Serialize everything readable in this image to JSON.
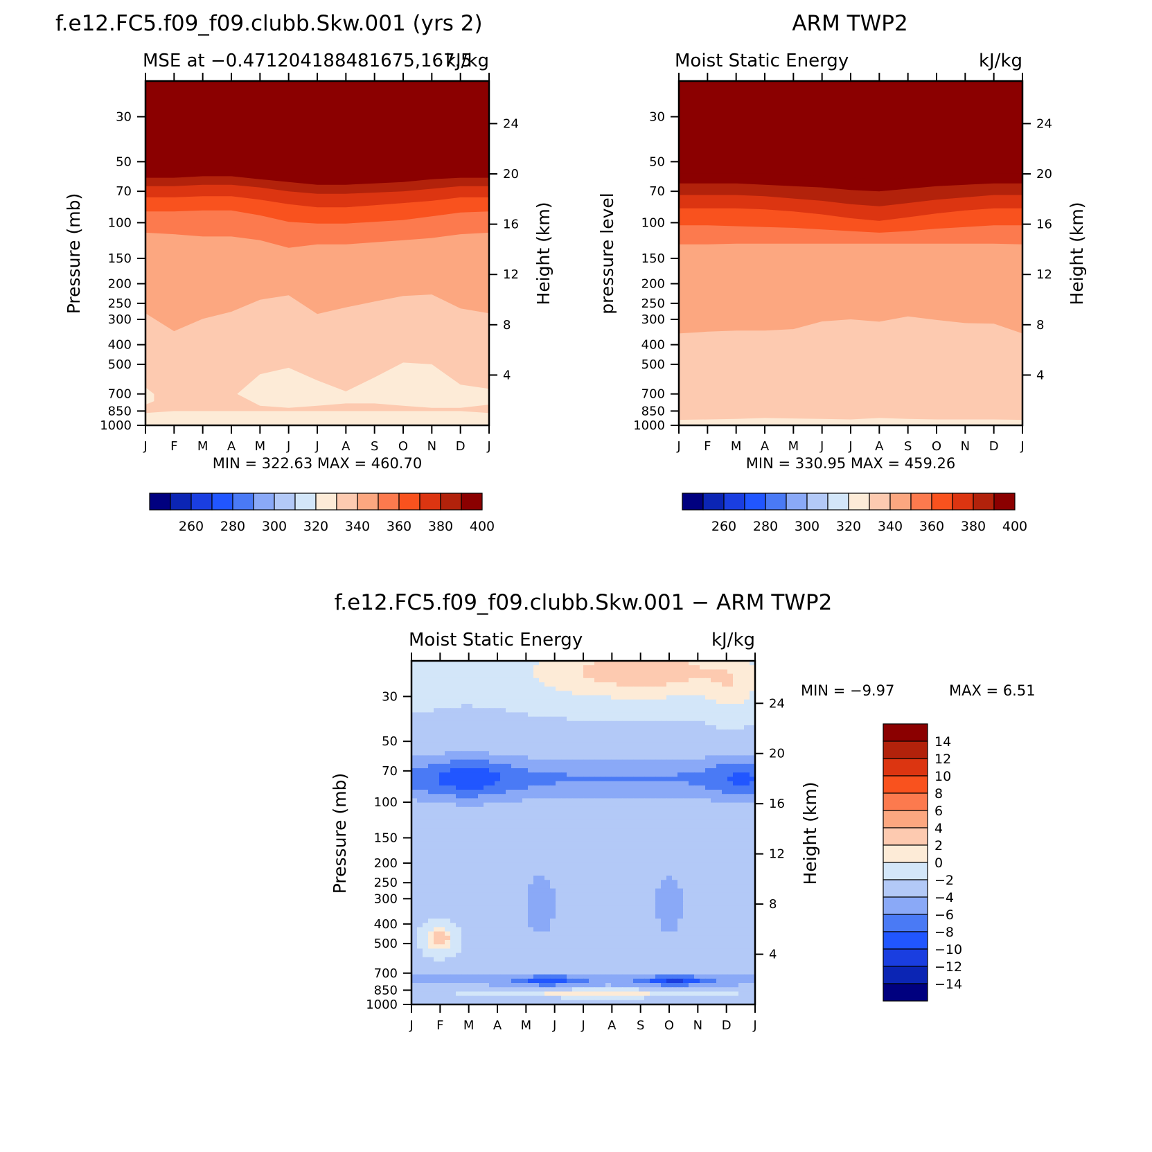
{
  "colors": {
    "mse_levels": [
      "#00007F",
      "#0B25B4",
      "#1A3EE0",
      "#2156FF",
      "#4A7AF5",
      "#8AA9F7",
      "#B3C9F7",
      "#D3E6F9",
      "#FDEBD7",
      "#FDCAB0",
      "#FCA780",
      "#FC7A4E",
      "#F9521E",
      "#DC3511",
      "#B2220B",
      "#8B0000"
    ],
    "diff_levels": [
      "#00007F",
      "#0B25B4",
      "#1A3EE0",
      "#2156FF",
      "#4A7AF5",
      "#8AA9F7",
      "#B3C9F7",
      "#D3E6F9",
      "#FDEBD7",
      "#FDCAB0",
      "#FCA780",
      "#FC7A4E",
      "#F9521E",
      "#DC3511",
      "#B2220B",
      "#8B0000"
    ]
  },
  "panels": [
    {
      "id": "model",
      "title": "f.e12.FC5.f09_f09.clubb.Skw.001 (yrs 2)",
      "subtitle_left": "MSE at −0.471204188481675,167.5",
      "subtitle_right": "kJ/kg",
      "ylabel_left": "Pressure (mb)",
      "ylabel_right": "Height (km)",
      "stats": "MIN = 322.63 MAX = 460.70"
    },
    {
      "id": "obs",
      "title": "ARM TWP2",
      "subtitle_left": "Moist Static Energy",
      "subtitle_right": "kJ/kg",
      "ylabel_left": "pressure level",
      "ylabel_right": "Height (km)",
      "stats": "MIN = 330.95 MAX = 459.26"
    },
    {
      "id": "diff",
      "title": "f.e12.FC5.f09_f09.clubb.Skw.001 − ARM TWP2",
      "subtitle_left": "Moist Static Energy",
      "subtitle_right": "kJ/kg",
      "ylabel_left": "Pressure (mb)",
      "ylabel_right": "Height (km)",
      "stats_min": "MIN =   −9.97",
      "stats_max": "MAX =     6.51"
    }
  ],
  "chart_data": [
    {
      "type": "heatmap",
      "panel": "model",
      "x_ticks": [
        "J",
        "F",
        "M",
        "A",
        "M",
        "J",
        "J",
        "A",
        "S",
        "O",
        "N",
        "D",
        "J"
      ],
      "y_ticks_pressure": [
        30,
        50,
        70,
        100,
        150,
        200,
        250,
        300,
        400,
        500,
        700,
        850,
        1000
      ],
      "y_ticks_height": [
        24,
        20,
        16,
        12,
        8,
        4
      ],
      "colorbar_labels": [
        "260",
        "280",
        "300",
        "320",
        "340",
        "360",
        "380",
        "400"
      ],
      "colorbar_levels": [
        250,
        260,
        270,
        280,
        290,
        300,
        310,
        320,
        330,
        340,
        350,
        360,
        370,
        380,
        390,
        400
      ],
      "contour_boundaries_pressure_mb": {
        "400": [
          55,
          54,
          53,
          53,
          55,
          57,
          58,
          58,
          57,
          56,
          55,
          55,
          54
        ],
        "390": [
          60,
          60,
          59,
          59,
          61,
          63,
          65,
          65,
          64,
          63,
          61,
          60,
          60
        ],
        "380": [
          66,
          66,
          65,
          65,
          67,
          70,
          72,
          72,
          71,
          70,
          68,
          66,
          66
        ],
        "370": [
          75,
          75,
          74,
          74,
          77,
          81,
          84,
          84,
          82,
          80,
          78,
          75,
          75
        ],
        "360": [
          88,
          88,
          87,
          87,
          92,
          99,
          101,
          101,
          99,
          97,
          93,
          89,
          88
        ],
        "350": [
          112,
          114,
          117,
          117,
          122,
          133,
          128,
          128,
          125,
          122,
          119,
          114,
          112
        ],
        "340": [
          280,
          343,
          298,
          275,
          240,
          228,
          282,
          262,
          245,
          230,
          226,
          265,
          280
        ],
        "330": [
          870,
          850,
          850,
          850,
          850,
          850,
          850,
          850,
          850,
          850,
          850,
          850,
          870
        ],
        "320": [
          1000,
          1000,
          1000,
          1000,
          1000,
          1000,
          1000,
          1000,
          1000,
          1000,
          1000,
          1000,
          1000
        ]
      },
      "low_region_320_330": {
        "x_months": [
          3.2,
          4.0,
          5.0,
          6.0,
          7.0,
          8.0,
          9.0,
          10.0,
          11.0,
          12.0,
          12.0
        ],
        "top_mb": [
          700,
          560,
          520,
          600,
          680,
          580,
          490,
          500,
          630,
          660,
          660
        ],
        "bottom_mb": [
          700,
          800,
          820,
          800,
          780,
          780,
          800,
          820,
          820,
          790,
          790
        ]
      },
      "ylim_mb": [
        1000,
        20
      ]
    },
    {
      "type": "heatmap",
      "panel": "obs",
      "x_ticks": [
        "J",
        "F",
        "M",
        "A",
        "M",
        "J",
        "J",
        "A",
        "S",
        "O",
        "N",
        "D",
        "J"
      ],
      "y_ticks_pressure": [
        30,
        50,
        70,
        100,
        150,
        200,
        250,
        300,
        400,
        500,
        700,
        850,
        1000
      ],
      "y_ticks_height": [
        24,
        20,
        16,
        12,
        8,
        4
      ],
      "colorbar_labels": [
        "260",
        "280",
        "300",
        "320",
        "340",
        "360",
        "380",
        "400"
      ],
      "colorbar_levels": [
        250,
        260,
        270,
        280,
        290,
        300,
        310,
        320,
        330,
        340,
        350,
        360,
        370,
        380,
        390,
        400
      ],
      "contour_boundaries_pressure_mb": {
        "400": [
          57,
          57,
          57,
          57,
          58,
          59,
          60,
          61,
          60,
          59,
          58,
          57,
          57
        ],
        "390": [
          64,
          64,
          64,
          65,
          66,
          67,
          69,
          70,
          68,
          66,
          65,
          64,
          64
        ],
        "380": [
          73,
          73,
          73,
          74,
          76,
          78,
          81,
          83,
          80,
          77,
          75,
          73,
          73
        ],
        "370": [
          85,
          85,
          85,
          86,
          88,
          91,
          95,
          98,
          94,
          90,
          87,
          85,
          85
        ],
        "360": [
          103,
          103,
          104,
          105,
          106,
          108,
          110,
          112,
          110,
          107,
          105,
          103,
          103
        ],
        "350": [
          128,
          128,
          127,
          127,
          127,
          127,
          127,
          127,
          127,
          127,
          127,
          127,
          128
        ],
        "340": [
          352,
          345,
          341,
          341,
          335,
          307,
          300,
          308,
          290,
          302,
          313,
          315,
          352
        ],
        "330": [
          940,
          935,
          930,
          920,
          925,
          930,
          935,
          920,
          930,
          935,
          935,
          935,
          940
        ]
      },
      "ylim_mb": [
        1000,
        20
      ]
    },
    {
      "type": "heatmap",
      "panel": "diff",
      "x_ticks": [
        "J",
        "F",
        "M",
        "A",
        "M",
        "J",
        "J",
        "A",
        "S",
        "O",
        "N",
        "D",
        "J"
      ],
      "y_ticks_pressure": [
        30,
        50,
        70,
        100,
        150,
        200,
        250,
        300,
        400,
        500,
        700,
        850,
        1000
      ],
      "y_ticks_height": [
        24,
        20,
        16,
        12,
        8,
        4
      ],
      "colorbar_labels": [
        "14",
        "12",
        "10",
        "8",
        "6",
        "4",
        "2",
        "0",
        "−2",
        "−4",
        "−6",
        "−8",
        "−10",
        "−12",
        "−14"
      ],
      "colorbar_levels": [
        -16,
        -14,
        -12,
        -10,
        -8,
        -6,
        -4,
        -2,
        0,
        2,
        4,
        6,
        8,
        10,
        12,
        14,
        16
      ],
      "value_min": -9.97,
      "value_max": 6.51,
      "ylim_mb": [
        1000,
        20
      ]
    }
  ]
}
